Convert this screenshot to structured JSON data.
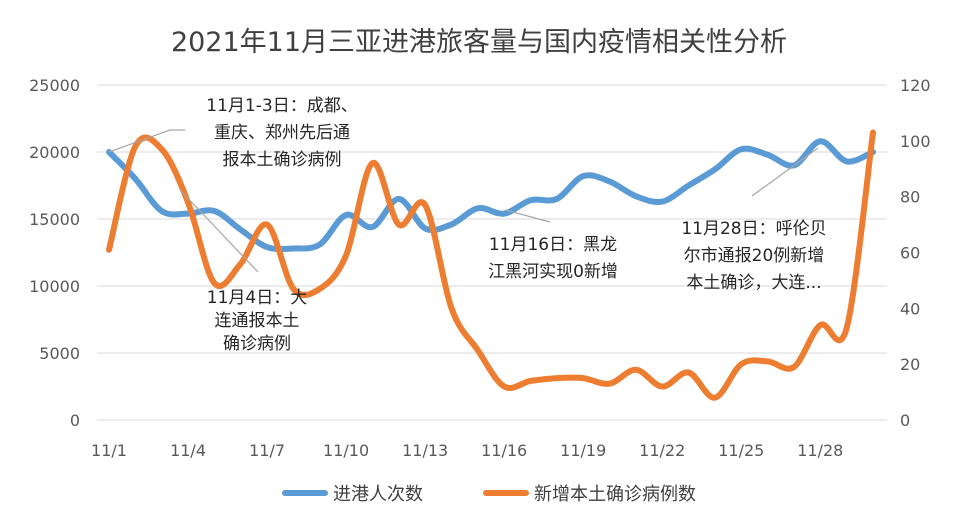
{
  "chart_data": {
    "type": "line",
    "title": "2021年11月三亚进港旅客量与国内疫情相关性分析",
    "categories": [
      "11/1",
      "11/2",
      "11/3",
      "11/4",
      "11/5",
      "11/6",
      "11/7",
      "11/8",
      "11/9",
      "11/10",
      "11/11",
      "11/12",
      "11/13",
      "11/14",
      "11/15",
      "11/16",
      "11/17",
      "11/18",
      "11/19",
      "11/20",
      "11/21",
      "11/22",
      "11/23",
      "11/24",
      "11/25",
      "11/26",
      "11/27",
      "11/28",
      "11/29",
      "11/30"
    ],
    "x_tick_labels": [
      "11/1",
      "11/4",
      "11/7",
      "11/10",
      "11/13",
      "11/16",
      "11/19",
      "11/22",
      "11/25",
      "11/28"
    ],
    "y_left": {
      "ylim": [
        0,
        25000
      ],
      "ticks": [
        "0",
        "5000",
        "10000",
        "15000",
        "20000",
        "25000"
      ]
    },
    "y_right": {
      "ylim": [
        0,
        120
      ],
      "ticks": [
        "0",
        "20",
        "40",
        "60",
        "80",
        "100",
        "120"
      ]
    },
    "grid": true,
    "legend_position": "bottom",
    "series": [
      {
        "name": "进港人次数",
        "axis": "left",
        "color": "#5B9BD5",
        "values": [
          20000,
          18000,
          15600,
          15400,
          15600,
          14200,
          12900,
          12800,
          13100,
          15300,
          14400,
          16500,
          14300,
          14600,
          15800,
          15400,
          16400,
          16500,
          18200,
          17800,
          16700,
          16300,
          17500,
          18700,
          20200,
          19800,
          19000,
          20800,
          19300,
          20000
        ]
      },
      {
        "name": "新增本土确诊病例数",
        "axis": "right",
        "color": "#ED7D31",
        "values": [
          61,
          98,
          97,
          78,
          49,
          56,
          70,
          47,
          47,
          59,
          92,
          70,
          77,
          40,
          25,
          12,
          14,
          15,
          15,
          13,
          18,
          12,
          17,
          8,
          20,
          21,
          19,
          34,
          33,
          103
        ]
      }
    ],
    "annotations": [
      {
        "lines": [
          "11月1-3日：成都、",
          "重庆、郑州先后通",
          "报本土确诊病例"
        ]
      },
      {
        "lines": [
          "11月4日：大",
          "连通报本土",
          "确诊病例"
        ]
      },
      {
        "lines": [
          "11月16日：黑龙",
          "江黑河实现0新增"
        ]
      },
      {
        "lines": [
          "11月28日：呼伦贝",
          "尔市通报20例新增",
          "本土确诊，大连..."
        ]
      }
    ]
  }
}
